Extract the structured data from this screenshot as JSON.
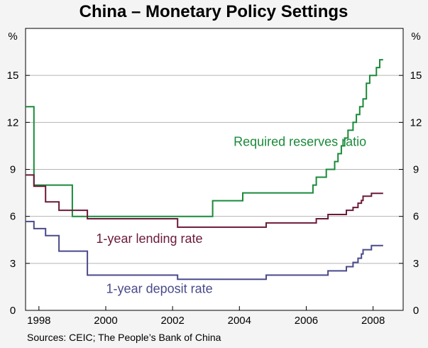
{
  "chart_data": {
    "type": "line",
    "title": "China – Monetary Policy Settings",
    "left_unit": "%",
    "right_unit": "%",
    "ylim": [
      0,
      18
    ],
    "yticks": [
      0,
      3,
      6,
      9,
      12,
      15
    ],
    "xlim": [
      1997.6,
      2008.9
    ],
    "xticks": [
      1998,
      2000,
      2002,
      2004,
      2006,
      2008
    ],
    "source": "Sources: CEIC; The People’s Bank of China",
    "series": [
      {
        "name": "Required reserves ratio",
        "color": "#1a8a3a",
        "label_text": "Required reserves ratio",
        "label_anchor": [
          2007.8,
          10.5
        ],
        "points": [
          [
            1997.6,
            13
          ],
          [
            1997.85,
            13
          ],
          [
            1997.85,
            8
          ],
          [
            1999.0,
            8
          ],
          [
            1999.0,
            6
          ],
          [
            2003.2,
            6
          ],
          [
            2003.2,
            7
          ],
          [
            2004.1,
            7
          ],
          [
            2004.1,
            7.5
          ],
          [
            2006.2,
            7.5
          ],
          [
            2006.2,
            8
          ],
          [
            2006.3,
            8
          ],
          [
            2006.3,
            8.5
          ],
          [
            2006.6,
            8.5
          ],
          [
            2006.6,
            9
          ],
          [
            2006.85,
            9
          ],
          [
            2006.85,
            9.5
          ],
          [
            2006.95,
            9.5
          ],
          [
            2006.95,
            10
          ],
          [
            2007.05,
            10
          ],
          [
            2007.05,
            10.5
          ],
          [
            2007.15,
            10.5
          ],
          [
            2007.15,
            11
          ],
          [
            2007.25,
            11
          ],
          [
            2007.25,
            11.5
          ],
          [
            2007.4,
            11.5
          ],
          [
            2007.4,
            12
          ],
          [
            2007.5,
            12
          ],
          [
            2007.5,
            12.5
          ],
          [
            2007.6,
            12.5
          ],
          [
            2007.6,
            13
          ],
          [
            2007.7,
            13
          ],
          [
            2007.7,
            13.5
          ],
          [
            2007.8,
            13.5
          ],
          [
            2007.8,
            14.5
          ],
          [
            2007.9,
            14.5
          ],
          [
            2007.9,
            15
          ],
          [
            2008.1,
            15
          ],
          [
            2008.1,
            15.5
          ],
          [
            2008.2,
            15.5
          ],
          [
            2008.2,
            16
          ],
          [
            2008.3,
            16
          ]
        ]
      },
      {
        "name": "1-year lending rate",
        "color": "#6b1a3a",
        "label_text": "1-year lending rate",
        "label_anchor": [
          2002.9,
          4.3
        ],
        "points": [
          [
            1997.6,
            8.64
          ],
          [
            1997.85,
            8.64
          ],
          [
            1997.85,
            7.92
          ],
          [
            1998.2,
            7.92
          ],
          [
            1998.2,
            6.93
          ],
          [
            1998.6,
            6.93
          ],
          [
            1998.6,
            6.39
          ],
          [
            1999.45,
            6.39
          ],
          [
            1999.45,
            5.85
          ],
          [
            2002.15,
            5.85
          ],
          [
            2002.15,
            5.31
          ],
          [
            2004.8,
            5.31
          ],
          [
            2004.8,
            5.58
          ],
          [
            2006.3,
            5.58
          ],
          [
            2006.3,
            5.85
          ],
          [
            2006.65,
            5.85
          ],
          [
            2006.65,
            6.12
          ],
          [
            2007.2,
            6.12
          ],
          [
            2007.2,
            6.39
          ],
          [
            2007.4,
            6.39
          ],
          [
            2007.4,
            6.57
          ],
          [
            2007.55,
            6.57
          ],
          [
            2007.55,
            6.84
          ],
          [
            2007.65,
            6.84
          ],
          [
            2007.65,
            7.02
          ],
          [
            2007.7,
            7.02
          ],
          [
            2007.7,
            7.29
          ],
          [
            2007.95,
            7.29
          ],
          [
            2007.95,
            7.47
          ],
          [
            2008.3,
            7.47
          ]
        ]
      },
      {
        "name": "1-year deposit rate",
        "color": "#4a4a8c",
        "label_text": "1-year deposit rate",
        "label_anchor": [
          2003.2,
          1.1
        ],
        "points": [
          [
            1997.6,
            5.67
          ],
          [
            1997.85,
            5.67
          ],
          [
            1997.85,
            5.22
          ],
          [
            1998.2,
            5.22
          ],
          [
            1998.2,
            4.77
          ],
          [
            1998.6,
            4.77
          ],
          [
            1998.6,
            3.78
          ],
          [
            1999.45,
            3.78
          ],
          [
            1999.45,
            2.25
          ],
          [
            2002.15,
            2.25
          ],
          [
            2002.15,
            1.98
          ],
          [
            2004.8,
            1.98
          ],
          [
            2004.8,
            2.25
          ],
          [
            2006.65,
            2.25
          ],
          [
            2006.65,
            2.52
          ],
          [
            2007.2,
            2.52
          ],
          [
            2007.2,
            2.79
          ],
          [
            2007.4,
            2.79
          ],
          [
            2007.4,
            3.06
          ],
          [
            2007.55,
            3.06
          ],
          [
            2007.55,
            3.33
          ],
          [
            2007.65,
            3.33
          ],
          [
            2007.65,
            3.6
          ],
          [
            2007.7,
            3.6
          ],
          [
            2007.7,
            3.87
          ],
          [
            2007.95,
            3.87
          ],
          [
            2007.95,
            4.14
          ],
          [
            2008.3,
            4.14
          ]
        ]
      }
    ]
  }
}
